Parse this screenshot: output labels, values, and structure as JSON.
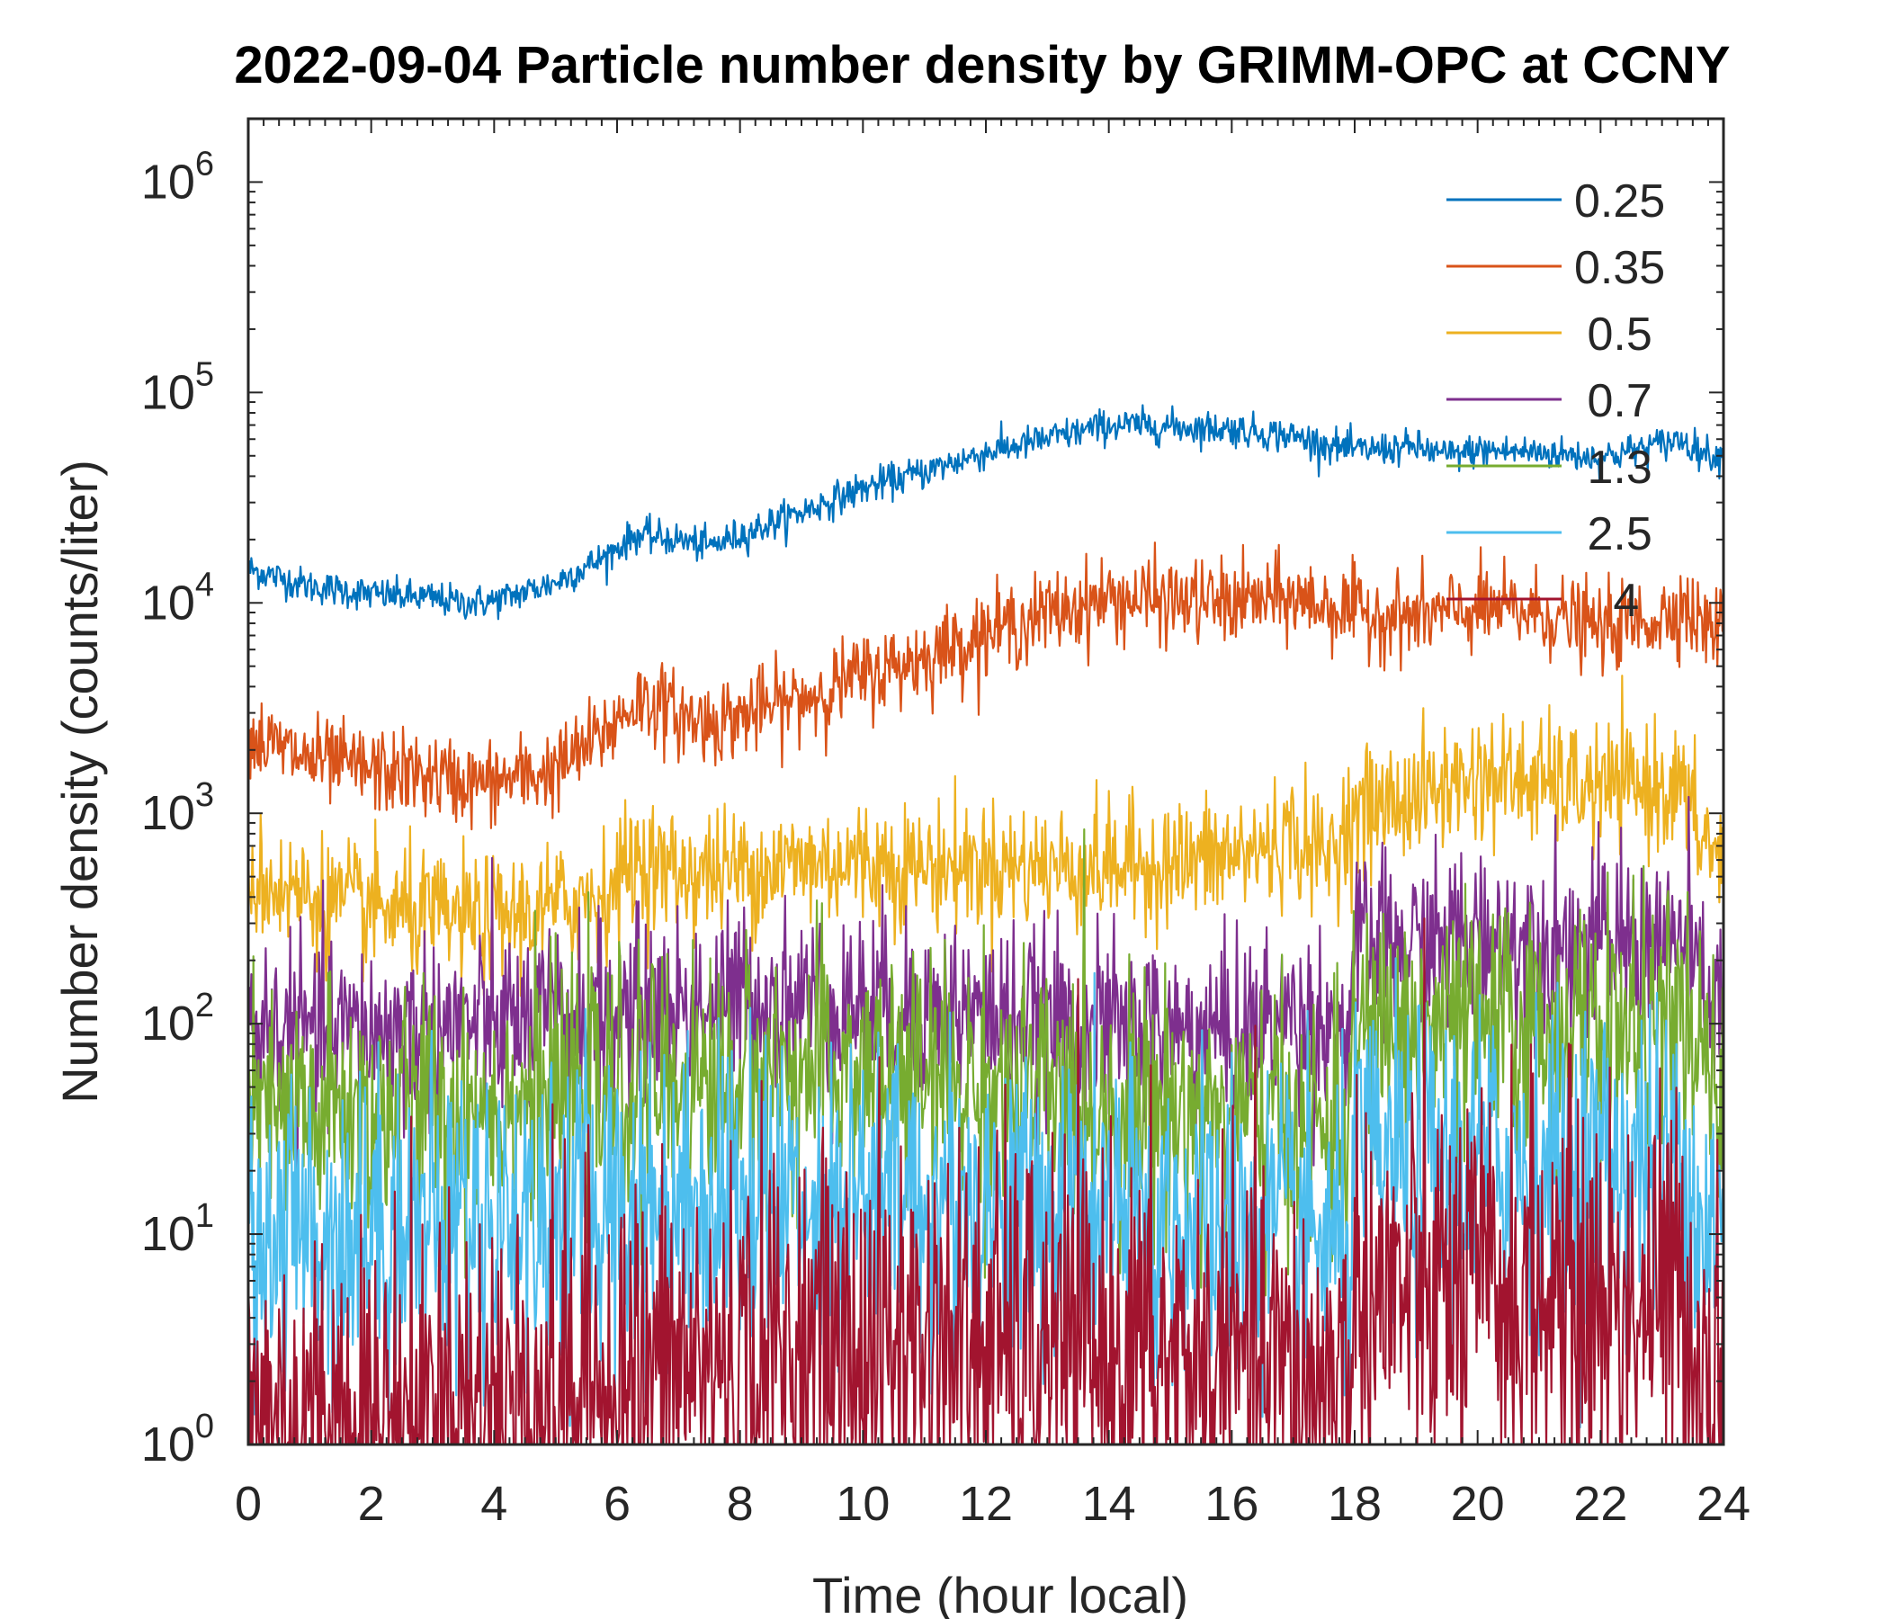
{
  "chart_data": {
    "type": "line",
    "title": "2022-09-04 Particle number density by GRIMM-OPC at CCNY",
    "xlabel": "Time (hour local)",
    "ylabel": "Number density (counts/liter)",
    "xlim": [
      0,
      24
    ],
    "ylim": [
      1,
      2000000
    ],
    "yscale": "log",
    "x_ticks": [
      0,
      2,
      4,
      6,
      8,
      10,
      12,
      14,
      16,
      18,
      20,
      22,
      24
    ],
    "x_tick_labels": [
      "0",
      "2",
      "4",
      "6",
      "8",
      "10",
      "12",
      "14",
      "16",
      "18",
      "20",
      "22",
      "24"
    ],
    "y_ticks": [
      1,
      10,
      100,
      1000,
      10000,
      100000,
      1000000
    ],
    "y_tick_labels": [
      {
        "base": "10",
        "exp": "0"
      },
      {
        "base": "10",
        "exp": "1"
      },
      {
        "base": "10",
        "exp": "2"
      },
      {
        "base": "10",
        "exp": "3"
      },
      {
        "base": "10",
        "exp": "4"
      },
      {
        "base": "10",
        "exp": "5"
      },
      {
        "base": "10",
        "exp": "6"
      }
    ],
    "legend_position": "top-right",
    "grid": false,
    "series": [
      {
        "name": "0.25",
        "label": "0.25",
        "color": "#0072BD",
        "noise": 0.04,
        "x": [
          0,
          1,
          2,
          3,
          3.5,
          4,
          5,
          5.8,
          6.3,
          7,
          7.5,
          8,
          9,
          10,
          11,
          12,
          13,
          13.6,
          14,
          15,
          16,
          17,
          17.5,
          18,
          19,
          19.5,
          20,
          21,
          22,
          23,
          23.3,
          23.6,
          24
        ],
        "y": [
          14500,
          12000,
          11000,
          10500,
          10000,
          10200,
          12500,
          16500,
          21000,
          20000,
          18500,
          21000,
          27000,
          35000,
          42000,
          52000,
          60000,
          66000,
          70000,
          69000,
          67000,
          62000,
          57000,
          53000,
          55000,
          50000,
          53000,
          52000,
          49000,
          57000,
          60000,
          53000,
          49000
        ]
      },
      {
        "name": "0.35",
        "label": "0.35",
        "color": "#D95319",
        "noise": 0.1,
        "x": [
          0,
          1,
          2,
          3,
          3.5,
          4,
          5,
          5.8,
          6.3,
          6.6,
          7,
          7.5,
          8,
          9,
          10,
          11,
          12,
          13,
          14,
          15,
          16,
          17,
          17.5,
          18,
          19,
          20,
          21,
          22,
          23,
          23.3,
          23.6,
          24
        ],
        "y": [
          2300,
          1800,
          1600,
          1500,
          1400,
          1400,
          1600,
          2400,
          3400,
          3400,
          2900,
          2700,
          2900,
          3500,
          4500,
          5500,
          7200,
          8800,
          10500,
          10200,
          10000,
          10500,
          9800,
          9000,
          8500,
          9300,
          9000,
          7500,
          8500,
          10000,
          8000,
          7500
        ]
      },
      {
        "name": "0.5",
        "label": " 0.5",
        "color": "#EDB120",
        "noise": 0.15,
        "x": [
          0,
          1,
          2,
          3,
          4,
          5,
          5.8,
          6.3,
          7,
          8,
          9,
          10,
          11,
          12,
          13,
          14,
          15,
          16,
          16.5,
          17,
          17.5,
          18,
          19,
          20,
          21,
          22,
          23,
          23.3,
          23.6,
          24
        ],
        "y": [
          500,
          400,
          350,
          320,
          310,
          360,
          420,
          600,
          520,
          540,
          580,
          590,
          560,
          570,
          560,
          560,
          580,
          620,
          680,
          780,
          600,
          1000,
          1200,
          1500,
          1400,
          1300,
          1350,
          1300,
          800,
          600
        ]
      },
      {
        "name": "0.7",
        "label": " 0.7",
        "color": "#7E2F8E",
        "noise": 0.22,
        "x": [
          0,
          1,
          2,
          3,
          4,
          5,
          6,
          7,
          8,
          9,
          10,
          11,
          12,
          13,
          14,
          15,
          16,
          17,
          17.5,
          17.9,
          18.0,
          19,
          20,
          21,
          22,
          23,
          23.4,
          23.6,
          24
        ],
        "y": [
          95,
          90,
          90,
          95,
          100,
          105,
          110,
          120,
          130,
          130,
          125,
          120,
          110,
          100,
          95,
          90,
          90,
          110,
          100,
          85,
          220,
          230,
          260,
          250,
          240,
          250,
          240,
          160,
          120
        ]
      },
      {
        "name": "1.3",
        "label": " 1.3",
        "color": "#77AC30",
        "noise": 0.3,
        "x": [
          0,
          2,
          4,
          6,
          8,
          10,
          12,
          14,
          16,
          17,
          17.9,
          18.0,
          20,
          22,
          23.4,
          23.6,
          24
        ],
        "y": [
          35,
          38,
          42,
          48,
          55,
          58,
          50,
          42,
          36,
          35,
          28,
          90,
          95,
          95,
          95,
          60,
          45
        ]
      },
      {
        "name": "2.5",
        "label": " 2.5",
        "color": "#4DBEEE",
        "noise": 0.38,
        "x": [
          0,
          2,
          4,
          6,
          8,
          10,
          12,
          14,
          16,
          17,
          17.9,
          18.0,
          20,
          22,
          23.4,
          23.6,
          24
        ],
        "y": [
          10,
          11,
          12,
          14,
          15,
          15,
          14,
          12,
          11,
          10,
          8,
          20,
          22,
          22,
          22,
          12,
          10
        ]
      },
      {
        "name": "4",
        "label": "   4",
        "color": "#A2142F",
        "noise": 0.5,
        "x": [
          0,
          2,
          4,
          6,
          8,
          10,
          12,
          14,
          16,
          17,
          17.9,
          18.0,
          20,
          22,
          23.4,
          23.6,
          24
        ],
        "y": [
          1.3,
          1.3,
          1.6,
          2.0,
          2.5,
          3.0,
          3.0,
          2.6,
          2.3,
          2.0,
          1.8,
          5.0,
          5.2,
          5.0,
          5.0,
          2.5,
          2.0
        ]
      }
    ]
  }
}
